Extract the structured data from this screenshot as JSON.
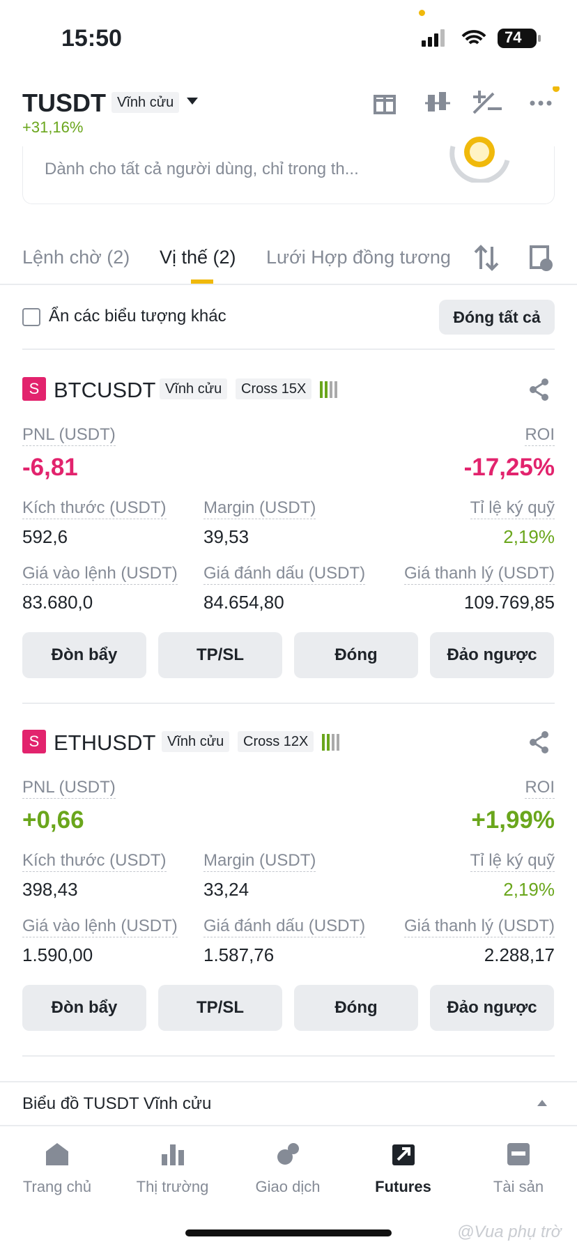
{
  "status_bar": {
    "time": "15:50",
    "battery": "74"
  },
  "header": {
    "symbol": "TUSDT",
    "contract": "Vĩnh cửu",
    "change": "+31,16%"
  },
  "banner": {
    "subtitle": "Dành cho tất cả người dùng, chỉ trong th..."
  },
  "tabs": [
    "Lệnh chờ (2)",
    "Vị thế (2)",
    "Lưới Hợp đồng tương"
  ],
  "filter": {
    "checkbox_label": "Ẩn các biểu tượng khác",
    "close_all": "Đóng tất cả"
  },
  "positions": [
    {
      "side": "S",
      "symbol": "BTCUSDT",
      "contract": "Vĩnh cửu",
      "margin_mode": "Cross 15X",
      "pnl_label": "PNL (USDT)",
      "pnl": "-6,81",
      "roi_label": "ROI",
      "roi": "-17,25%",
      "tone": "loss",
      "fields": [
        {
          "label": "Kích thước (USDT)",
          "value": "592,6"
        },
        {
          "label": "Margin (USDT)",
          "value": "39,53"
        },
        {
          "label": "Tỉ lệ ký quỹ",
          "value": "2,19%"
        },
        {
          "label": "Giá vào lệnh (USDT)",
          "value": "83.680,0"
        },
        {
          "label": "Giá đánh dấu (USDT)",
          "value": "84.654,80"
        },
        {
          "label": "Giá thanh lý (USDT)",
          "value": "109.769,85"
        }
      ],
      "actions": [
        "Đòn bẩy",
        "TP/SL",
        "Đóng",
        "Đảo ngược"
      ]
    },
    {
      "side": "S",
      "symbol": "ETHUSDT",
      "contract": "Vĩnh cửu",
      "margin_mode": "Cross 12X",
      "pnl_label": "PNL (USDT)",
      "pnl": "+0,66",
      "roi_label": "ROI",
      "roi": "+1,99%",
      "tone": "profit",
      "fields": [
        {
          "label": "Kích thước (USDT)",
          "value": "398,43"
        },
        {
          "label": "Margin (USDT)",
          "value": "33,24"
        },
        {
          "label": "Tỉ lệ ký quỹ",
          "value": "2,19%"
        },
        {
          "label": "Giá vào lệnh (USDT)",
          "value": "1.590,00"
        },
        {
          "label": "Giá đánh dấu (USDT)",
          "value": "1.587,76"
        },
        {
          "label": "Giá thanh lý (USDT)",
          "value": "2.288,17"
        }
      ],
      "actions": [
        "Đòn bẩy",
        "TP/SL",
        "Đóng",
        "Đảo ngược"
      ]
    }
  ],
  "chart_bar": "Biểu đồ TUSDT Vĩnh cửu",
  "nav": [
    "Trang chủ",
    "Thị trường",
    "Giao dịch",
    "Futures",
    "Tài sản"
  ],
  "watermark": "@Vua phụ trờ"
}
